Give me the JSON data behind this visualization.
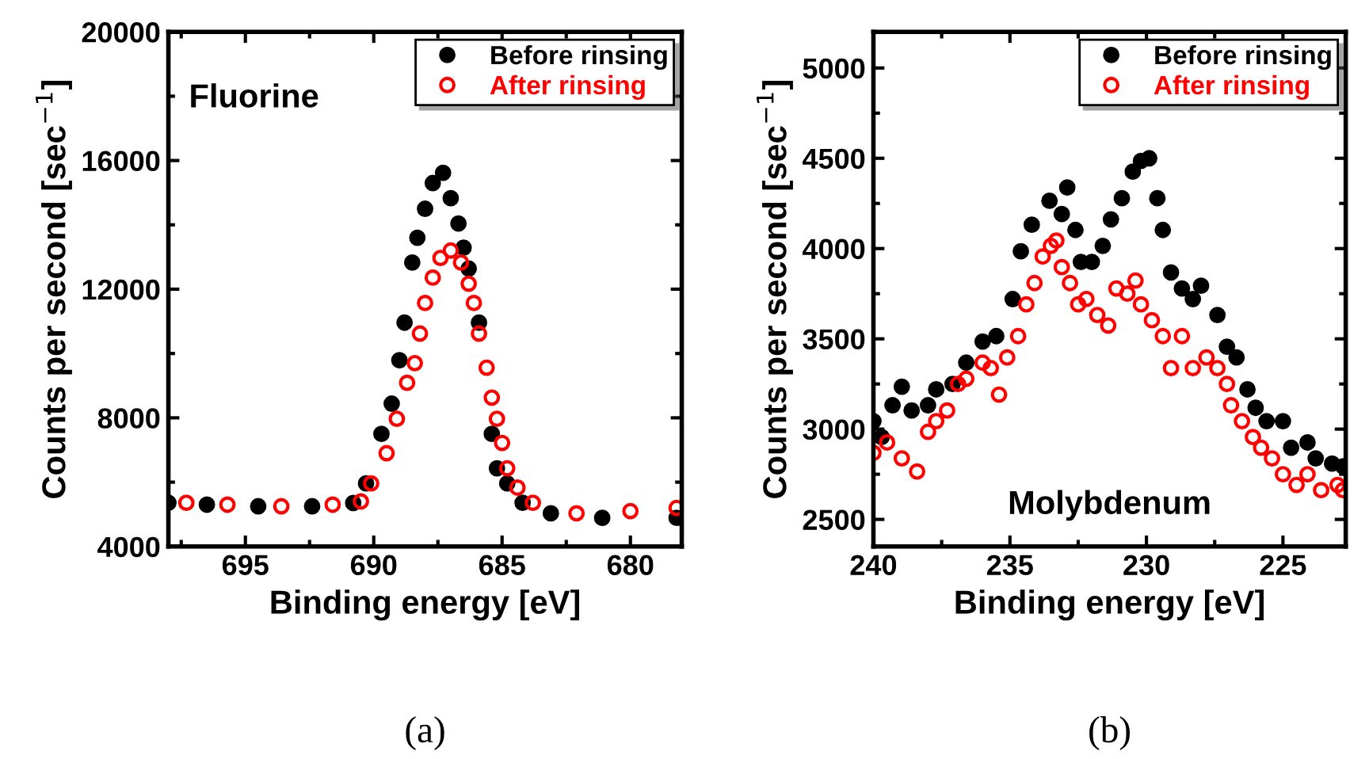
{
  "chart_data": [
    {
      "type": "scatter",
      "xlabel": "Binding energy [eV]",
      "ylabel": "Counts per second [sec$^{−1}$]",
      "xlim": [
        698,
        678
      ],
      "xticks": [
        695,
        690,
        685,
        680
      ],
      "ylim": [
        4000,
        20000
      ],
      "yticks": [
        4000,
        8000,
        12000,
        16000,
        20000
      ],
      "grid": false,
      "legend": "top right",
      "marker": "circle",
      "annotations": [
        "Fluorine",
        "(a)"
      ],
      "series": [
        {
          "name": "Before rinsing",
          "color": "#000000",
          "x": [
            698.0,
            696.5,
            694.5,
            692.4,
            690.8,
            690.3,
            689.7,
            689.3,
            689.0,
            688.8,
            688.5,
            688.3,
            688.0,
            687.7,
            687.3,
            687.0,
            686.7,
            686.5,
            686.3,
            685.9,
            685.4,
            685.2,
            684.8,
            684.2,
            683.1,
            681.1,
            678.2
          ],
          "values": [
            5360,
            5300,
            5250,
            5250,
            5350,
            5960,
            7500,
            8440,
            9790,
            10960,
            12830,
            13600,
            14500,
            15300,
            15620,
            14830,
            14040,
            13290,
            12640,
            10960,
            7500,
            6430,
            5960,
            5360,
            5030,
            4890,
            4890
          ]
        },
        {
          "name": "After rinsing",
          "color": "#ff0000",
          "x": [
            697.3,
            695.7,
            693.6,
            691.6,
            690.5,
            690.1,
            689.5,
            689.1,
            688.7,
            688.4,
            688.2,
            688.0,
            687.7,
            687.4,
            687.0,
            686.6,
            686.3,
            686.1,
            685.9,
            685.6,
            685.4,
            685.2,
            685.0,
            684.8,
            684.4,
            683.8,
            682.1,
            680.0,
            678.2
          ],
          "values": [
            5360,
            5300,
            5250,
            5300,
            5400,
            5960,
            6900,
            7970,
            9090,
            9700,
            10620,
            11570,
            12360,
            12970,
            13200,
            12830,
            12170,
            11570,
            10620,
            9560,
            8630,
            7970,
            7220,
            6430,
            5830,
            5360,
            5030,
            5100,
            5200
          ]
        }
      ]
    },
    {
      "type": "scatter",
      "xlabel": "Binding energy [eV]",
      "ylabel": "Counts per second [sec$^{−1}$]",
      "xlim": [
        240,
        222.7
      ],
      "xticks": [
        240,
        235,
        230,
        225
      ],
      "ylim": [
        2350,
        5200
      ],
      "yticks": [
        2500,
        3000,
        3500,
        4000,
        4500,
        5000
      ],
      "grid": false,
      "legend": "top right",
      "marker": "circle",
      "annotations": [
        "Molybdenum",
        "(b)"
      ],
      "series": [
        {
          "name": "Before rinsing",
          "color": "#000000",
          "x": [
            240.0,
            239.7,
            239.3,
            238.96,
            238.6,
            238.0,
            237.7,
            237.1,
            236.6,
            236.0,
            235.5,
            234.9,
            234.6,
            234.2,
            233.55,
            233.1,
            232.9,
            232.6,
            232.4,
            232.0,
            231.6,
            231.3,
            230.9,
            230.5,
            230.2,
            229.9,
            229.6,
            229.4,
            229.1,
            228.7,
            228.3,
            228.0,
            227.4,
            227.05,
            226.7,
            226.3,
            226.0,
            225.6,
            225.0,
            224.7,
            224.1,
            223.8,
            223.2,
            222.8
          ],
          "values": [
            3044,
            2956,
            3132,
            3235,
            3103,
            3132,
            3220,
            3250,
            3368,
            3485,
            3515,
            3720,
            3985,
            4132,
            4265,
            4191,
            4338,
            4103,
            3926,
            3926,
            4015,
            4162,
            4279,
            4426,
            4485,
            4500,
            4279,
            4103,
            3868,
            3779,
            3720,
            3794,
            3632,
            3456,
            3397,
            3220,
            3118,
            3044,
            3044,
            2897,
            2926,
            2838,
            2809,
            2794
          ]
        },
        {
          "name": "After rinsing",
          "color": "#ff0000",
          "x": [
            240.0,
            239.5,
            238.96,
            238.4,
            238.0,
            237.7,
            237.3,
            236.9,
            236.6,
            236.0,
            235.7,
            235.4,
            235.1,
            234.7,
            234.4,
            234.1,
            233.8,
            233.5,
            233.3,
            233.1,
            232.8,
            232.5,
            232.2,
            231.8,
            231.4,
            231.1,
            230.7,
            230.4,
            230.2,
            229.8,
            229.4,
            229.1,
            228.7,
            228.3,
            227.8,
            227.4,
            227.05,
            226.9,
            226.5,
            226.1,
            225.8,
            225.4,
            225.0,
            224.5,
            224.1,
            223.6,
            223.0,
            222.8
          ],
          "values": [
            2868,
            2926,
            2838,
            2765,
            2985,
            3044,
            3103,
            3250,
            3279,
            3368,
            3338,
            3191,
            3397,
            3515,
            3691,
            3809,
            3956,
            4015,
            4044,
            3897,
            3809,
            3691,
            3721,
            3632,
            3574,
            3779,
            3750,
            3823,
            3691,
            3603,
            3515,
            3338,
            3515,
            3338,
            3397,
            3338,
            3250,
            3132,
            3044,
            2956,
            2897,
            2838,
            2750,
            2691,
            2750,
            2662,
            2691,
            2662
          ]
        }
      ]
    }
  ]
}
